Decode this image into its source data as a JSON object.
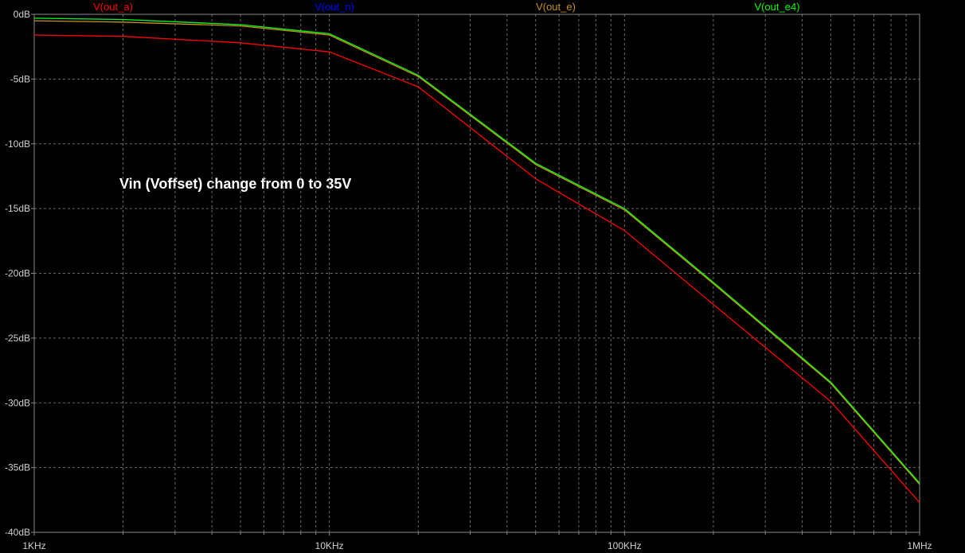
{
  "chart_data": {
    "type": "line",
    "annotation": "Vin (Voffset) change from 0 to 35V",
    "x": [
      1000,
      2000,
      5000,
      10000,
      20000,
      50000,
      100000,
      200000,
      500000,
      1000000
    ],
    "xlim": [
      1000,
      1000000
    ],
    "xlog": true,
    "xticks": [
      {
        "value": 1000,
        "label": "1KHz"
      },
      {
        "value": 10000,
        "label": "10KHz"
      },
      {
        "value": 100000,
        "label": "100KHz"
      },
      {
        "value": 1000000,
        "label": "1MHz"
      }
    ],
    "ylim": [
      -40,
      0
    ],
    "yticks": [
      {
        "value": 0,
        "label": "0dB"
      },
      {
        "value": -5,
        "label": "-5dB"
      },
      {
        "value": -10,
        "label": "-10dB"
      },
      {
        "value": -15,
        "label": "-15dB"
      },
      {
        "value": -20,
        "label": "-20dB"
      },
      {
        "value": -25,
        "label": "-25dB"
      },
      {
        "value": -30,
        "label": "-30dB"
      },
      {
        "value": -35,
        "label": "-35dB"
      },
      {
        "value": -40,
        "label": "-40dB"
      }
    ],
    "grid": true,
    "series": [
      {
        "name": "V(out_a)",
        "color": "#ff0000",
        "values": [
          -1.6,
          -1.7,
          -2.2,
          -2.9,
          -5.6,
          -12.7,
          -16.7,
          -22.4,
          -29.9,
          -37.7
        ]
      },
      {
        "name": "V(out_n)",
        "color": "#0000ff",
        "values": [
          -0.3,
          -0.4,
          -0.8,
          -1.5,
          -4.7,
          -11.5,
          -15.0,
          -20.7,
          -28.4,
          -36.2
        ]
      },
      {
        "name": "V(out_e)",
        "color": "#c8901e",
        "values": [
          -0.5,
          -0.6,
          -0.9,
          -1.6,
          -4.8,
          -11.6,
          -15.1,
          -20.8,
          -28.5,
          -36.3
        ]
      },
      {
        "name": "V(out_e4)",
        "color": "#00ff00",
        "values": [
          -0.3,
          -0.4,
          -0.8,
          -1.5,
          -4.7,
          -11.5,
          -15.0,
          -20.7,
          -28.4,
          -36.2
        ]
      }
    ]
  }
}
